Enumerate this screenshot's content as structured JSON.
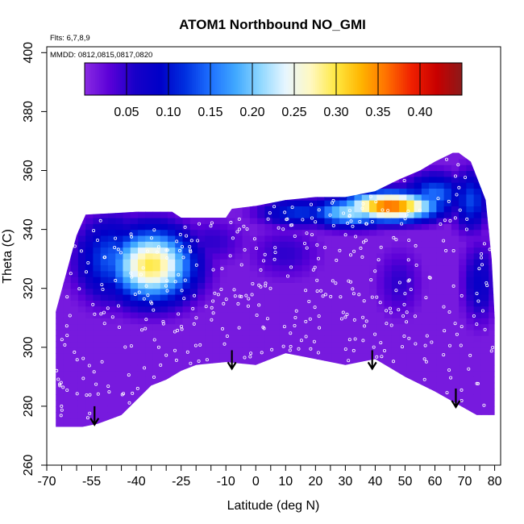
{
  "chart_data": {
    "type": "heatmap",
    "title": "ATOM1 Northbound NO_GMI",
    "annotations": {
      "flights": "Flts: 6,7,8,9",
      "dates": "MMDD: 0812,0815,0817,0820"
    },
    "xlabel": "Latitude (deg N)",
    "ylabel": "Theta (C)",
    "xlim": [
      -70,
      82
    ],
    "ylim": [
      260,
      402
    ],
    "x_ticks": [
      -70,
      -55,
      -40,
      -25,
      -10,
      0,
      10,
      20,
      30,
      40,
      50,
      60,
      70,
      80
    ],
    "x_tick_labels": [
      "-70",
      "-55",
      "-40",
      "-25",
      "-10",
      "0",
      "10",
      "20",
      "30",
      "40",
      "50",
      "60",
      "70",
      "80"
    ],
    "x_minor_ticks": [
      -65,
      -60,
      -50,
      -45,
      -35,
      -30,
      -20,
      -15,
      -5,
      5,
      15,
      25,
      35,
      45,
      55,
      65,
      75
    ],
    "y_ticks": [
      260,
      280,
      300,
      320,
      340,
      360,
      380,
      400
    ],
    "y_tick_labels": [
      "260",
      "280",
      "300",
      "320",
      "340",
      "360",
      "380",
      "400"
    ],
    "colorbar": {
      "range": [
        0,
        0.45
      ],
      "ticks": [
        0.05,
        0.1,
        0.15,
        0.2,
        0.25,
        0.3,
        0.35,
        0.4
      ],
      "tick_labels": [
        "0.05",
        "0.10",
        "0.15",
        "0.20",
        "0.25",
        "0.30",
        "0.35",
        "0.40"
      ],
      "colors": [
        "#8a2be2",
        "#5a00d8",
        "#1800c8",
        "#0000c8",
        "#0030e0",
        "#1e70ff",
        "#40a8ff",
        "#90d8ff",
        "#e8f6ff",
        "#fff8c0",
        "#ffe840",
        "#ffb400",
        "#ff7000",
        "#f02000",
        "#c80000",
        "#8b1a1a"
      ]
    },
    "domain": {
      "latitude_range": [
        -67,
        80
      ],
      "top_boundary": [
        [
          -67,
          312
        ],
        [
          -60,
          338
        ],
        [
          -57,
          345
        ],
        [
          -40,
          346
        ],
        [
          -28,
          346
        ],
        [
          -25,
          344
        ],
        [
          -10,
          344
        ],
        [
          -8,
          347
        ],
        [
          0,
          348
        ],
        [
          10,
          350
        ],
        [
          20,
          351
        ],
        [
          30,
          351
        ],
        [
          40,
          353
        ],
        [
          48,
          357
        ],
        [
          55,
          360
        ],
        [
          60,
          363
        ],
        [
          66,
          366
        ],
        [
          68,
          366
        ],
        [
          72,
          363
        ],
        [
          77,
          350
        ],
        [
          79,
          330
        ],
        [
          80,
          310
        ]
      ],
      "bottom_boundary": [
        [
          80,
          277
        ],
        [
          74,
          277
        ],
        [
          60,
          285
        ],
        [
          50,
          290
        ],
        [
          40,
          296
        ],
        [
          30,
          294
        ],
        [
          20,
          296
        ],
        [
          10,
          298
        ],
        [
          0,
          294
        ],
        [
          -10,
          295
        ],
        [
          -20,
          294
        ],
        [
          -25,
          292
        ],
        [
          -30,
          289
        ],
        [
          -35,
          287
        ],
        [
          -45,
          277
        ],
        [
          -53,
          274
        ],
        [
          -58,
          273
        ],
        [
          -67,
          273
        ]
      ]
    },
    "features": [
      {
        "lat": -35,
        "theta": 328,
        "value": 0.3,
        "lat_radius": 14,
        "theta_radius": 12
      },
      {
        "lat": -48,
        "theta": 330,
        "value": 0.14,
        "lat_radius": 12,
        "theta_radius": 14
      },
      {
        "lat": 45,
        "theta": 348,
        "value": 0.37,
        "lat_radius": 16,
        "theta_radius": 5
      },
      {
        "lat": 32,
        "theta": 346,
        "value": 0.22,
        "lat_radius": 14,
        "theta_radius": 5
      },
      {
        "lat": 15,
        "theta": 346,
        "value": 0.12,
        "lat_radius": 14,
        "theta_radius": 5
      },
      {
        "lat": 60,
        "theta": 352,
        "value": 0.15,
        "lat_radius": 10,
        "theta_radius": 7
      },
      {
        "lat": 72,
        "theta": 350,
        "value": 0.13,
        "lat_radius": 6,
        "theta_radius": 10
      },
      {
        "lat": 75,
        "theta": 322,
        "value": 0.08,
        "lat_radius": 6,
        "theta_radius": 14
      },
      {
        "lat": 10,
        "theta": 332,
        "value": 0.05,
        "lat_radius": 12,
        "theta_radius": 9
      },
      {
        "lat": -15,
        "theta": 336,
        "value": 0.05,
        "lat_radius": 12,
        "theta_radius": 8
      },
      {
        "lat": 48,
        "theta": 322,
        "value": 0.05,
        "lat_radius": 8,
        "theta_radius": 12
      }
    ],
    "arrows": [
      {
        "lat": -54,
        "theta": 280
      },
      {
        "lat": -8,
        "theta": 299
      },
      {
        "lat": 39,
        "theta": 299
      },
      {
        "lat": 67,
        "theta": 286
      }
    ]
  }
}
